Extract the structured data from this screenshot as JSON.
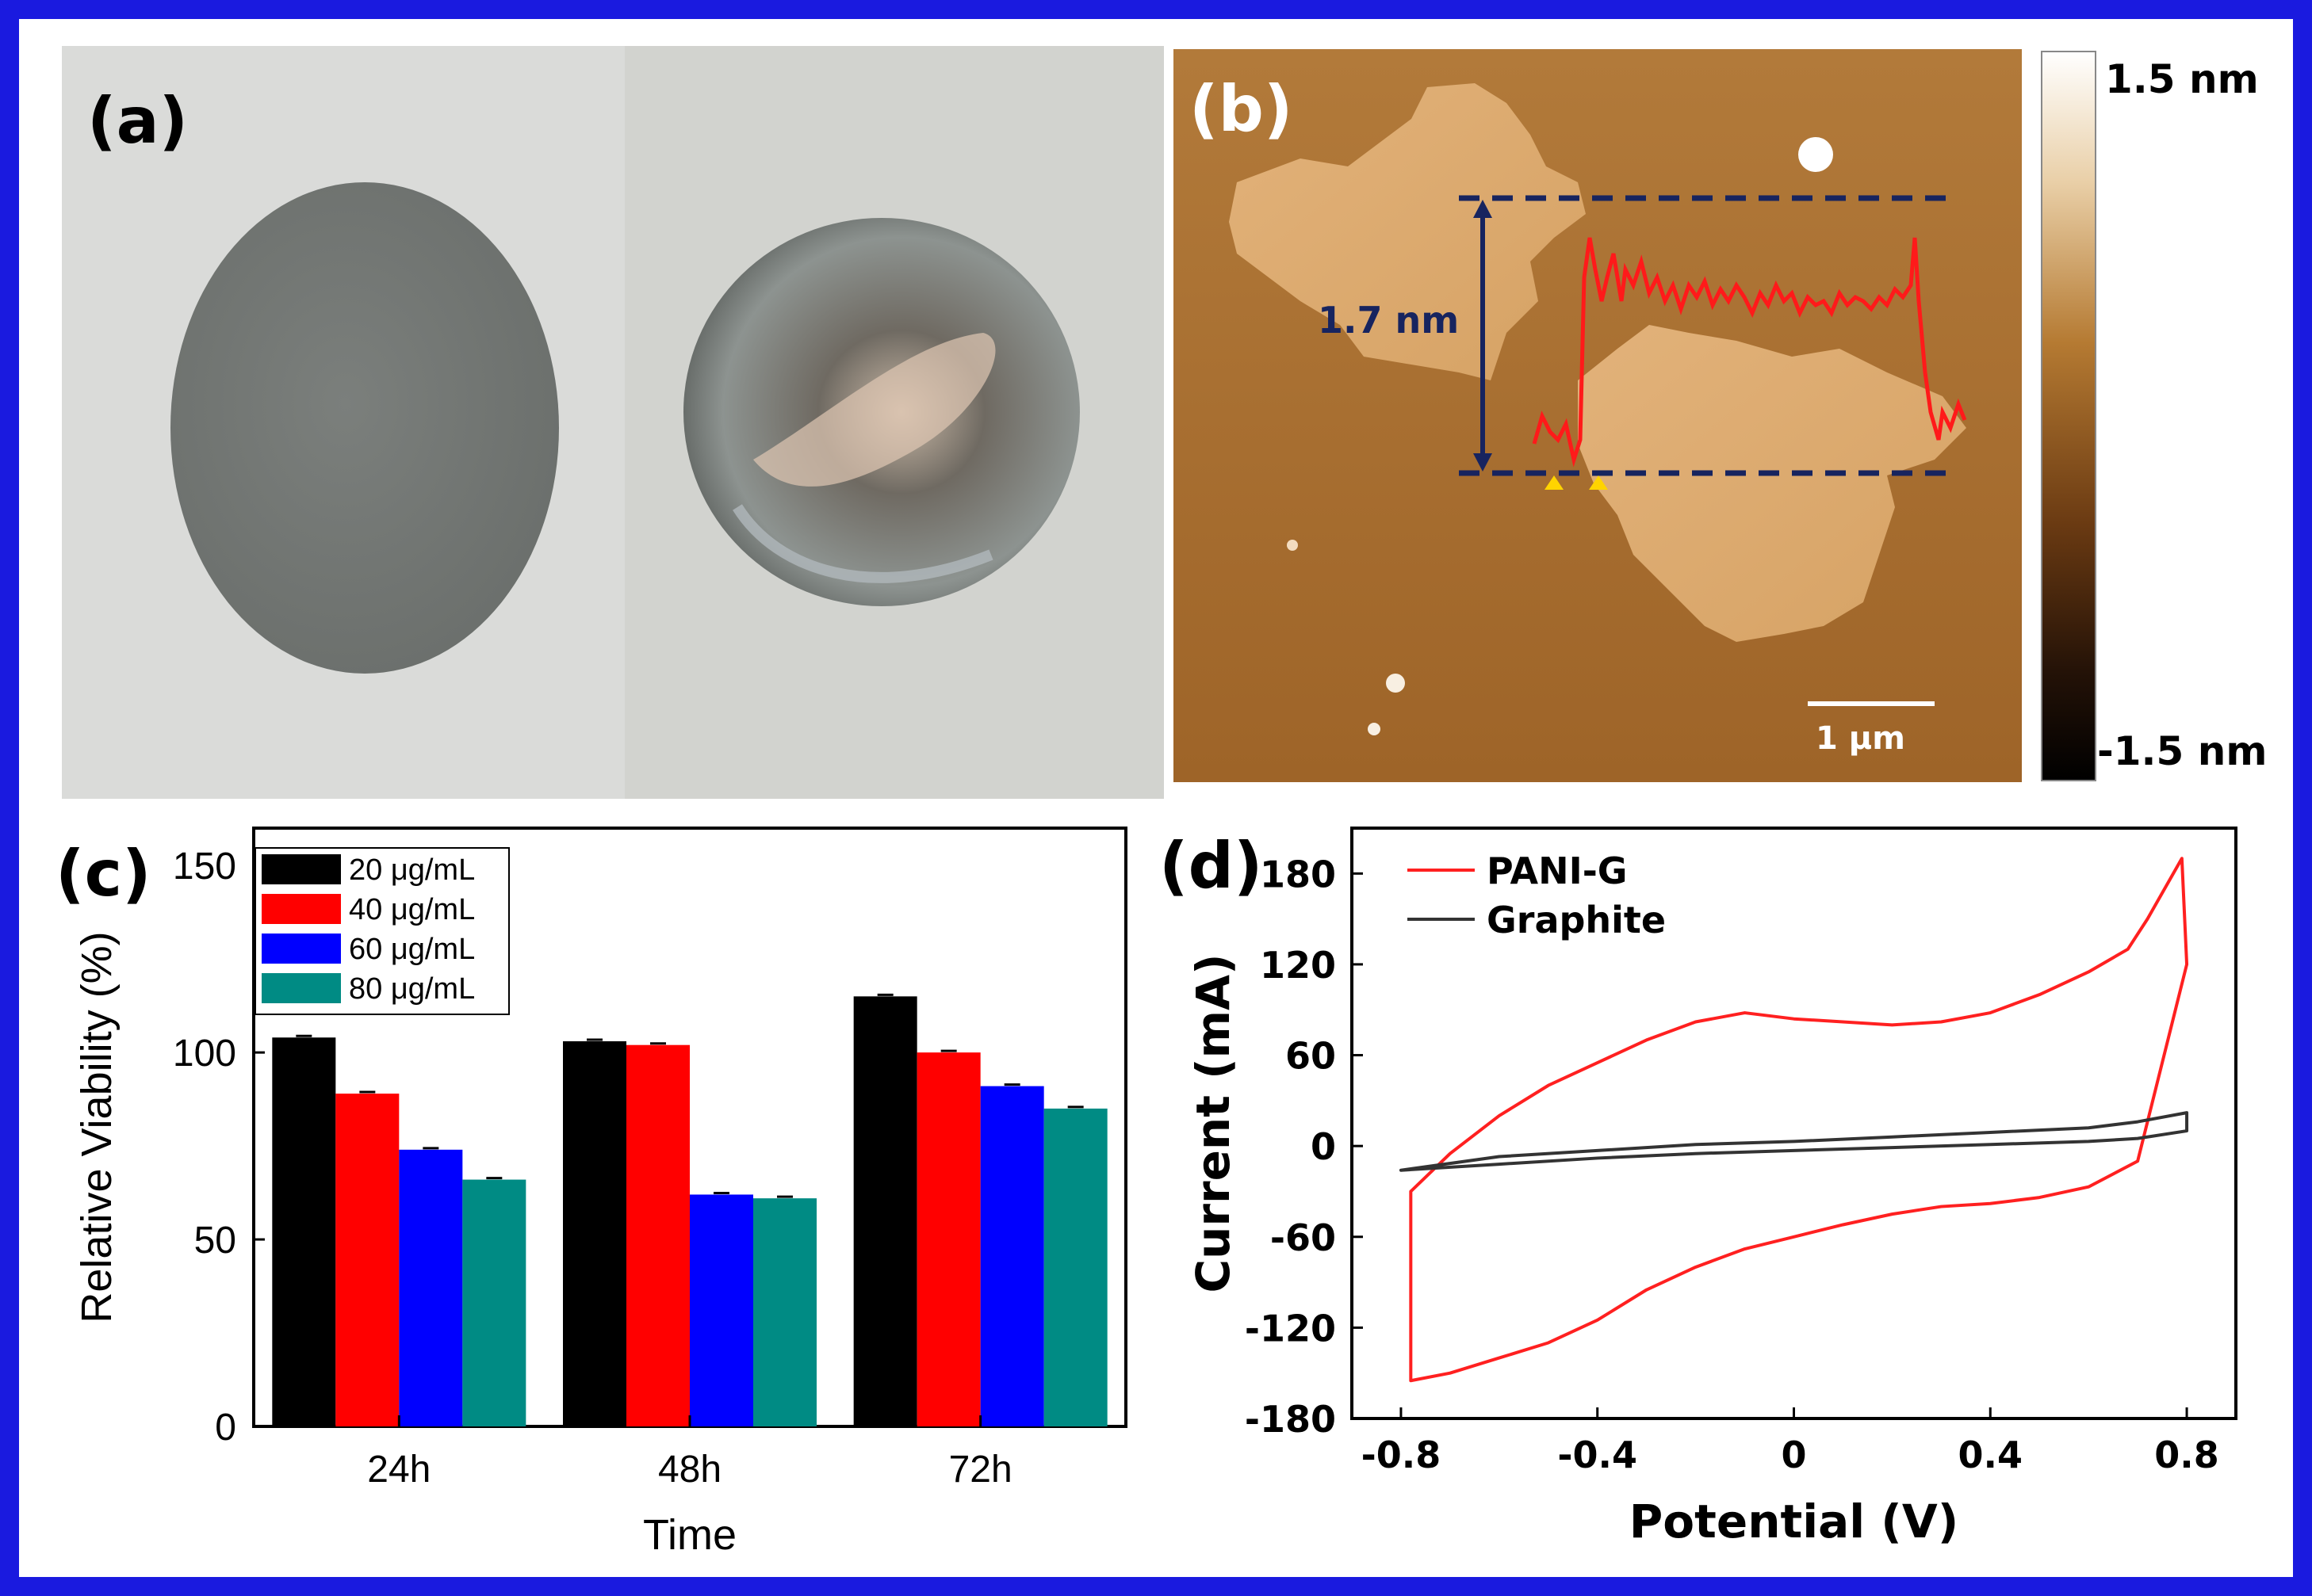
{
  "figure": {
    "border_color": "#1a1adf",
    "panels": {
      "a": {
        "label": "(a)"
      },
      "b": {
        "label": "(b)",
        "step_height": "1.7 nm",
        "colorbar_max": "1.5 nm",
        "colorbar_min": "-1.5 nm",
        "scalebar": "1 μm"
      },
      "c": {
        "label": "(c)"
      },
      "d": {
        "label": "(d)"
      }
    }
  },
  "chart_data": [
    {
      "panel": "c",
      "type": "bar",
      "title": "",
      "xlabel": "Time",
      "ylabel": "Relative Viability (%)",
      "ylim": [
        0,
        160
      ],
      "yticks": [
        0,
        50,
        100,
        150
      ],
      "categories": [
        "24h",
        "48h",
        "72h"
      ],
      "legend_placement": "top-left",
      "series": [
        {
          "name": "20 μg/mL",
          "color": "#000000",
          "values": [
            104,
            103,
            115
          ]
        },
        {
          "name": "40 μg/mL",
          "color": "#ff0000",
          "values": [
            89,
            102,
            100
          ]
        },
        {
          "name": "60 μg/mL",
          "color": "#0000ff",
          "values": [
            74,
            62,
            91
          ]
        },
        {
          "name": "80 μg/mL",
          "color": "#008b84",
          "values": [
            66,
            61,
            85
          ]
        }
      ]
    },
    {
      "panel": "d",
      "type": "line",
      "title": "",
      "xlabel": "Potential (V)",
      "ylabel": "Current (mA)",
      "xlim": [
        -0.9,
        0.9
      ],
      "ylim": [
        -180,
        210
      ],
      "xticks": [
        -0.8,
        -0.4,
        0,
        0.4,
        0.8
      ],
      "xtick_labels": [
        "-0.8",
        "-0.4",
        "0",
        "0.4",
        "0.8"
      ],
      "yticks": [
        -180,
        -120,
        -60,
        0,
        60,
        120,
        180
      ],
      "legend_placement": "top-left",
      "series": [
        {
          "name": "PANI-G",
          "color": "#ff2020",
          "x": [
            -0.78,
            -0.7,
            -0.6,
            -0.5,
            -0.4,
            -0.3,
            -0.2,
            -0.1,
            0.0,
            0.1,
            0.2,
            0.3,
            0.4,
            0.5,
            0.6,
            0.7,
            0.8,
            0.79,
            0.72,
            0.68,
            0.6,
            0.5,
            0.4,
            0.3,
            0.2,
            0.1,
            0.0,
            -0.1,
            -0.2,
            -0.3,
            -0.4,
            -0.5,
            -0.6,
            -0.7,
            -0.78
          ],
          "y": [
            -155,
            -150,
            -140,
            -130,
            -115,
            -95,
            -80,
            -68,
            -60,
            -52,
            -45,
            -40,
            -38,
            -34,
            -27,
            -10,
            120,
            190,
            150,
            130,
            115,
            100,
            88,
            82,
            80,
            82,
            84,
            88,
            82,
            70,
            55,
            40,
            20,
            -5,
            -30
          ]
        },
        {
          "name": "Graphite",
          "color": "#333333",
          "x": [
            -0.8,
            -0.6,
            -0.4,
            -0.2,
            0.0,
            0.2,
            0.4,
            0.6,
            0.7,
            0.8,
            0.8,
            0.7,
            0.6,
            0.4,
            0.2,
            0.0,
            -0.2,
            -0.4,
            -0.6,
            -0.8
          ],
          "y": [
            -16,
            -12,
            -8,
            -5,
            -3,
            -1,
            1,
            3,
            5,
            10,
            22,
            16,
            12,
            9,
            6,
            3,
            1,
            -3,
            -7,
            -16
          ]
        }
      ]
    }
  ]
}
